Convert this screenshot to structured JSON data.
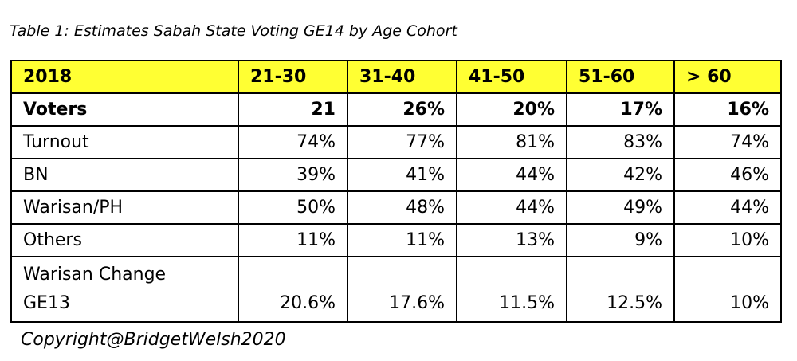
{
  "title": "Table 1: Estimates Sabah State Voting GE14 by Age Cohort",
  "table": {
    "header": [
      "2018",
      "21-30",
      "31-40",
      "41-50",
      "51-60",
      "> 60"
    ],
    "rows": [
      [
        "Voters",
        "21",
        "26%",
        "20%",
        "17%",
        "16%"
      ],
      [
        "Turnout",
        "74%",
        "77%",
        "81%",
        "83%",
        "74%"
      ],
      [
        "BN",
        "39%",
        "41%",
        "44%",
        "42%",
        "46%"
      ],
      [
        "Warisan/PH",
        "50%",
        "48%",
        "44%",
        "49%",
        "44%"
      ],
      [
        "Others",
        "11%",
        "11%",
        "13%",
        "9%",
        "10%"
      ],
      [
        "Warisan Change\nGE13",
        "20.6%",
        "17.6%",
        "11.5%",
        "12.5%",
        "10%"
      ]
    ]
  },
  "footer": "Copyright@BridgetWelsh2020"
}
